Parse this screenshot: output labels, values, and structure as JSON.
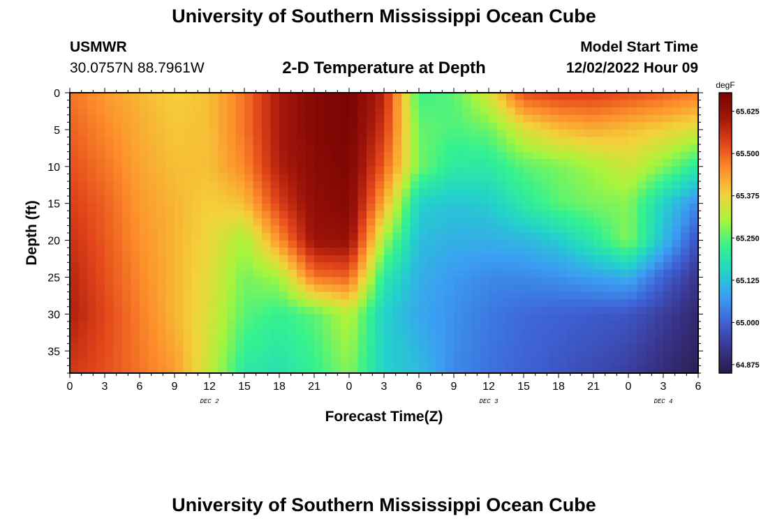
{
  "header": {
    "title": "University of Southern Mississippi Ocean Cube",
    "station": "USMWR",
    "coords": "30.0757N  88.7961W",
    "plot_title": "2-D Temperature at Depth",
    "model_label": "Model Start Time",
    "model_time": "12/02/2022 Hour 09"
  },
  "footer": {
    "title": "University of Southern Mississippi Ocean Cube"
  },
  "chart_data": {
    "type": "heatmap",
    "title": "2-D Temperature at Depth",
    "xlabel": "Forecast Time(Z)",
    "ylabel": "Depth (ft)",
    "xlim": [
      0,
      54
    ],
    "ylim": [
      38,
      0
    ],
    "x_ticks": [
      {
        "value": 0,
        "label": "0"
      },
      {
        "value": 3,
        "label": "3"
      },
      {
        "value": 6,
        "label": "6"
      },
      {
        "value": 9,
        "label": "9"
      },
      {
        "value": 12,
        "label": "12"
      },
      {
        "value": 15,
        "label": "15"
      },
      {
        "value": 18,
        "label": "18"
      },
      {
        "value": 21,
        "label": "21"
      },
      {
        "value": 24,
        "label": "0"
      },
      {
        "value": 27,
        "label": "3"
      },
      {
        "value": 30,
        "label": "6"
      },
      {
        "value": 33,
        "label": "9"
      },
      {
        "value": 36,
        "label": "12"
      },
      {
        "value": 39,
        "label": "15"
      },
      {
        "value": 42,
        "label": "18"
      },
      {
        "value": 45,
        "label": "21"
      },
      {
        "value": 48,
        "label": "0"
      },
      {
        "value": 51,
        "label": "3"
      },
      {
        "value": 54,
        "label": "6"
      }
    ],
    "y_ticks": [
      {
        "value": 0,
        "label": "0"
      },
      {
        "value": 5,
        "label": "5"
      },
      {
        "value": 10,
        "label": "10"
      },
      {
        "value": 15,
        "label": "15"
      },
      {
        "value": 20,
        "label": "20"
      },
      {
        "value": 25,
        "label": "25"
      },
      {
        "value": 30,
        "label": "30"
      },
      {
        "value": 35,
        "label": "35"
      }
    ],
    "date_labels": [
      {
        "value": 12,
        "label": "DEC 2"
      },
      {
        "value": 36,
        "label": "DEC 3"
      },
      {
        "value": 51,
        "label": "DEC 4"
      }
    ],
    "colorbar": {
      "unit": "degF",
      "min": 64.85,
      "max": 65.68,
      "ticks": [
        "64.875",
        "65.000",
        "65.125",
        "65.250",
        "65.375",
        "65.500",
        "65.625"
      ],
      "colormap": [
        "#2b1a4a",
        "#3a3690",
        "#3e62d6",
        "#3b9ef3",
        "#22d4c8",
        "#37f28d",
        "#a9f43b",
        "#f3d23a",
        "#fd8e2b",
        "#e2451a",
        "#a3160a",
        "#7a0403"
      ]
    },
    "depths": [
      0,
      5,
      10,
      15,
      20,
      25,
      30,
      38
    ],
    "times": [
      0,
      3,
      6,
      9,
      12,
      15,
      18,
      21,
      24,
      27,
      30,
      33,
      36,
      39,
      42,
      45,
      48,
      51,
      54
    ],
    "values": [
      [
        65.48,
        65.44,
        65.41,
        65.38,
        65.4,
        65.48,
        65.6,
        65.66,
        65.68,
        65.58,
        65.23,
        65.25,
        65.35,
        65.52,
        65.54,
        65.54,
        65.52,
        65.5,
        65.47
      ],
      [
        65.5,
        65.46,
        65.42,
        65.39,
        65.4,
        65.48,
        65.6,
        65.66,
        65.68,
        65.55,
        65.26,
        65.24,
        65.26,
        65.35,
        65.4,
        65.42,
        65.4,
        65.38,
        65.35
      ],
      [
        65.52,
        65.48,
        65.43,
        65.4,
        65.4,
        65.46,
        65.59,
        65.65,
        65.67,
        65.5,
        65.27,
        65.2,
        65.2,
        65.25,
        65.27,
        65.3,
        65.34,
        65.28,
        65.2
      ],
      [
        65.54,
        65.5,
        65.44,
        65.41,
        65.38,
        65.4,
        65.54,
        65.64,
        65.66,
        65.42,
        65.15,
        65.13,
        65.14,
        65.2,
        65.25,
        65.27,
        65.28,
        65.15,
        65.05
      ],
      [
        65.56,
        65.51,
        65.45,
        65.41,
        65.37,
        65.3,
        65.45,
        65.62,
        65.63,
        65.3,
        65.12,
        65.1,
        65.1,
        65.11,
        65.14,
        65.2,
        65.28,
        65.12,
        64.97
      ],
      [
        65.58,
        65.52,
        65.46,
        65.41,
        65.36,
        65.27,
        65.3,
        65.48,
        65.5,
        65.2,
        65.1,
        65.07,
        65.05,
        65.05,
        65.06,
        65.08,
        65.1,
        65.0,
        64.92
      ],
      [
        65.59,
        65.53,
        65.47,
        65.41,
        65.35,
        65.25,
        65.22,
        65.25,
        65.32,
        65.15,
        65.09,
        65.06,
        65.03,
        65.01,
        65.0,
        64.99,
        64.98,
        64.94,
        64.89
      ],
      [
        65.55,
        65.52,
        65.48,
        65.44,
        65.33,
        65.2,
        65.18,
        65.22,
        65.28,
        65.15,
        65.12,
        65.05,
        65.02,
        65.0,
        64.98,
        64.96,
        64.94,
        64.9,
        64.86
      ]
    ]
  }
}
